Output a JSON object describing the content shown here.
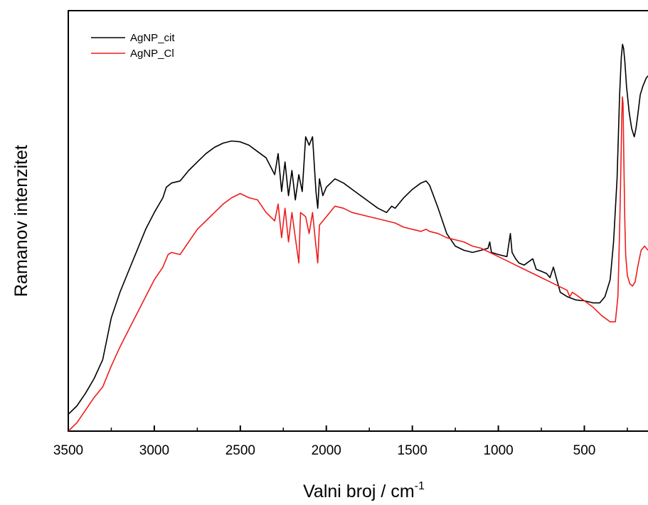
{
  "chart_data": {
    "type": "line",
    "xlabel": "Valni broj / cm",
    "xlabel_superscript": "-1",
    "ylabel": "Ramanov intenzitet",
    "xlim": [
      3500,
      130
    ],
    "x_reversed": true,
    "ylim": [
      0,
      100
    ],
    "y_ticks_labeled": false,
    "x_ticks": [
      {
        "value": 3500,
        "label": "3500"
      },
      {
        "value": 3000,
        "label": "3000"
      },
      {
        "value": 2500,
        "label": "2500"
      },
      {
        "value": 2000,
        "label": "2000"
      },
      {
        "value": 1500,
        "label": "1500"
      },
      {
        "value": 1000,
        "label": "1000"
      },
      {
        "value": 500,
        "label": "500"
      }
    ],
    "legend_position": "top-left",
    "series": [
      {
        "name": "AgNP_cit",
        "color": "#000000",
        "points": [
          [
            3500,
            4
          ],
          [
            3450,
            6
          ],
          [
            3400,
            9
          ],
          [
            3350,
            12.5
          ],
          [
            3300,
            17
          ],
          [
            3250,
            27
          ],
          [
            3200,
            33
          ],
          [
            3150,
            38
          ],
          [
            3100,
            43
          ],
          [
            3050,
            48
          ],
          [
            3000,
            52
          ],
          [
            2950,
            55.5
          ],
          [
            2930,
            58
          ],
          [
            2900,
            59
          ],
          [
            2850,
            59.5
          ],
          [
            2800,
            62
          ],
          [
            2750,
            64
          ],
          [
            2700,
            66
          ],
          [
            2650,
            67.5
          ],
          [
            2600,
            68.5
          ],
          [
            2550,
            69
          ],
          [
            2500,
            68.8
          ],
          [
            2450,
            68
          ],
          [
            2400,
            66.5
          ],
          [
            2350,
            65
          ],
          [
            2300,
            61
          ],
          [
            2280,
            66
          ],
          [
            2260,
            57
          ],
          [
            2240,
            64
          ],
          [
            2220,
            56
          ],
          [
            2200,
            62
          ],
          [
            2180,
            55
          ],
          [
            2160,
            61
          ],
          [
            2140,
            57
          ],
          [
            2120,
            70
          ],
          [
            2100,
            68
          ],
          [
            2080,
            70
          ],
          [
            2060,
            57
          ],
          [
            2050,
            53
          ],
          [
            2040,
            60
          ],
          [
            2020,
            56
          ],
          [
            2000,
            58
          ],
          [
            1950,
            60
          ],
          [
            1900,
            59
          ],
          [
            1850,
            57.5
          ],
          [
            1800,
            56
          ],
          [
            1750,
            54.5
          ],
          [
            1700,
            53
          ],
          [
            1650,
            52
          ],
          [
            1620,
            53.5
          ],
          [
            1600,
            53
          ],
          [
            1550,
            55.5
          ],
          [
            1500,
            57.5
          ],
          [
            1450,
            59
          ],
          [
            1420,
            59.5
          ],
          [
            1400,
            58.5
          ],
          [
            1350,
            53
          ],
          [
            1300,
            47
          ],
          [
            1250,
            44
          ],
          [
            1200,
            43
          ],
          [
            1150,
            42.5
          ],
          [
            1100,
            43
          ],
          [
            1060,
            43.5
          ],
          [
            1050,
            45
          ],
          [
            1040,
            42.5
          ],
          [
            1000,
            42
          ],
          [
            950,
            41.5
          ],
          [
            930,
            47
          ],
          [
            920,
            42.5
          ],
          [
            900,
            41
          ],
          [
            880,
            40
          ],
          [
            850,
            39.5
          ],
          [
            800,
            41
          ],
          [
            780,
            38.5
          ],
          [
            750,
            38
          ],
          [
            720,
            37.5
          ],
          [
            700,
            36.5
          ],
          [
            680,
            39
          ],
          [
            660,
            36
          ],
          [
            640,
            33
          ],
          [
            600,
            32
          ],
          [
            550,
            31.2
          ],
          [
            500,
            31
          ],
          [
            450,
            30.5
          ],
          [
            410,
            30.5
          ],
          [
            380,
            32
          ],
          [
            350,
            36
          ],
          [
            330,
            45
          ],
          [
            310,
            60
          ],
          [
            295,
            80
          ],
          [
            285,
            89
          ],
          [
            278,
            92
          ],
          [
            272,
            91
          ],
          [
            265,
            88
          ],
          [
            255,
            82
          ],
          [
            240,
            76
          ],
          [
            225,
            72
          ],
          [
            210,
            70
          ],
          [
            200,
            72
          ],
          [
            190,
            75
          ],
          [
            175,
            80
          ],
          [
            160,
            82
          ],
          [
            140,
            84
          ],
          [
            130,
            84.5
          ]
        ]
      },
      {
        "name": "AgNP_Cl",
        "color": "#ee1c1c",
        "points": [
          [
            3500,
            0
          ],
          [
            3450,
            2
          ],
          [
            3400,
            5
          ],
          [
            3350,
            8
          ],
          [
            3300,
            10.5
          ],
          [
            3250,
            15.5
          ],
          [
            3200,
            20
          ],
          [
            3150,
            24
          ],
          [
            3100,
            28
          ],
          [
            3050,
            32
          ],
          [
            3000,
            36
          ],
          [
            2950,
            39
          ],
          [
            2920,
            42
          ],
          [
            2900,
            42.5
          ],
          [
            2850,
            42
          ],
          [
            2800,
            45
          ],
          [
            2750,
            48
          ],
          [
            2700,
            50
          ],
          [
            2650,
            52
          ],
          [
            2600,
            54
          ],
          [
            2550,
            55.5
          ],
          [
            2500,
            56.5
          ],
          [
            2450,
            55.5
          ],
          [
            2400,
            55
          ],
          [
            2350,
            52
          ],
          [
            2300,
            50
          ],
          [
            2280,
            54
          ],
          [
            2260,
            46
          ],
          [
            2240,
            53
          ],
          [
            2220,
            45
          ],
          [
            2200,
            52
          ],
          [
            2180,
            46
          ],
          [
            2160,
            40
          ],
          [
            2150,
            52
          ],
          [
            2120,
            51
          ],
          [
            2100,
            47
          ],
          [
            2080,
            52
          ],
          [
            2060,
            44
          ],
          [
            2050,
            40
          ],
          [
            2040,
            49
          ],
          [
            2000,
            51
          ],
          [
            1950,
            53.5
          ],
          [
            1900,
            53
          ],
          [
            1850,
            52
          ],
          [
            1800,
            51.5
          ],
          [
            1750,
            51
          ],
          [
            1700,
            50.5
          ],
          [
            1650,
            50
          ],
          [
            1600,
            49.5
          ],
          [
            1550,
            48.5
          ],
          [
            1500,
            48
          ],
          [
            1450,
            47.5
          ],
          [
            1420,
            48
          ],
          [
            1400,
            47.5
          ],
          [
            1350,
            47
          ],
          [
            1300,
            46
          ],
          [
            1250,
            45.5
          ],
          [
            1200,
            45
          ],
          [
            1150,
            44
          ],
          [
            1100,
            43.5
          ],
          [
            1050,
            42.5
          ],
          [
            1000,
            41.5
          ],
          [
            950,
            40.5
          ],
          [
            900,
            39.5
          ],
          [
            850,
            38.5
          ],
          [
            800,
            37.5
          ],
          [
            750,
            36.5
          ],
          [
            700,
            35.5
          ],
          [
            650,
            34.5
          ],
          [
            600,
            33.5
          ],
          [
            585,
            32
          ],
          [
            570,
            33
          ],
          [
            550,
            32.5
          ],
          [
            500,
            31
          ],
          [
            450,
            29.5
          ],
          [
            400,
            27.5
          ],
          [
            350,
            26
          ],
          [
            320,
            26
          ],
          [
            305,
            32
          ],
          [
            295,
            48
          ],
          [
            288,
            62
          ],
          [
            282,
            75
          ],
          [
            279,
            79.5
          ],
          [
            275,
            78
          ],
          [
            270,
            64
          ],
          [
            265,
            50
          ],
          [
            260,
            42
          ],
          [
            250,
            37
          ],
          [
            235,
            35
          ],
          [
            220,
            34.5
          ],
          [
            205,
            35.5
          ],
          [
            190,
            39
          ],
          [
            170,
            43
          ],
          [
            150,
            44
          ],
          [
            130,
            43
          ]
        ]
      }
    ]
  }
}
